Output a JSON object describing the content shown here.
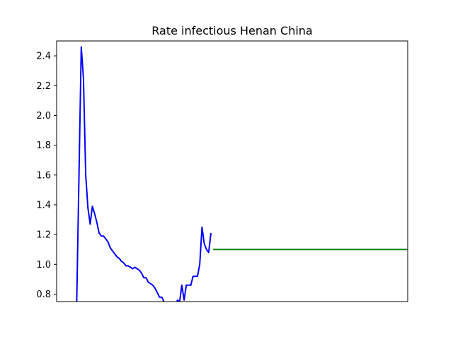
{
  "chart_data": {
    "type": "line",
    "title": "Rate infectious Henan China",
    "xlabel": "",
    "ylabel": "",
    "x_ticks_shown": false,
    "xlim": [
      -9,
      148
    ],
    "ylim": [
      0.75,
      2.5
    ],
    "y_ticks": [
      "0.8",
      "1.0",
      "1.2",
      "1.4",
      "1.6",
      "1.8",
      "2.0",
      "2.2",
      "2.4"
    ],
    "grid": false,
    "series": [
      {
        "color": "#0000ff",
        "x": [
          0,
          1,
          2,
          3,
          4,
          5,
          6,
          7,
          8,
          9,
          10,
          11,
          12,
          13,
          14,
          15,
          16,
          17,
          18,
          19,
          20,
          21,
          22,
          23,
          24,
          25,
          26,
          27,
          28,
          29,
          30,
          31,
          32,
          33,
          34,
          35,
          36,
          37,
          38,
          39,
          40,
          41,
          42,
          43,
          44,
          45,
          46,
          47,
          48,
          49,
          50
        ],
        "y": [
          0.75,
          1.6,
          2.46,
          2.25,
          1.6,
          1.38,
          1.27,
          1.39,
          1.34,
          1.28,
          1.21,
          1.19,
          1.19,
          1.17,
          1.15,
          1.11,
          1.09,
          1.07,
          1.05,
          1.04,
          1.02,
          1.01,
          0.99,
          0.99,
          0.98,
          0.97,
          0.98,
          0.97,
          0.96,
          0.94,
          0.91,
          0.91,
          0.88,
          0.87,
          0.86,
          0.84,
          0.81,
          0.78,
          0.78,
          0.75,
          0.7,
          0.7,
          0.7,
          0.7,
          0.7,
          0.76,
          0.75,
          0.86,
          0.76,
          0.86,
          0.86
        ]
      },
      {
        "color": "#0000ff",
        "x": [
          50,
          51,
          52,
          53,
          54,
          55,
          56,
          57,
          58,
          59,
          60
        ],
        "y": [
          0.86,
          0.86,
          0.92,
          0.92,
          0.92,
          1.0,
          1.25,
          1.14,
          1.1,
          1.08,
          1.21
        ]
      },
      {
        "color": "#008000",
        "x": [
          61,
          148
        ],
        "y": [
          1.1,
          1.1
        ]
      }
    ]
  }
}
